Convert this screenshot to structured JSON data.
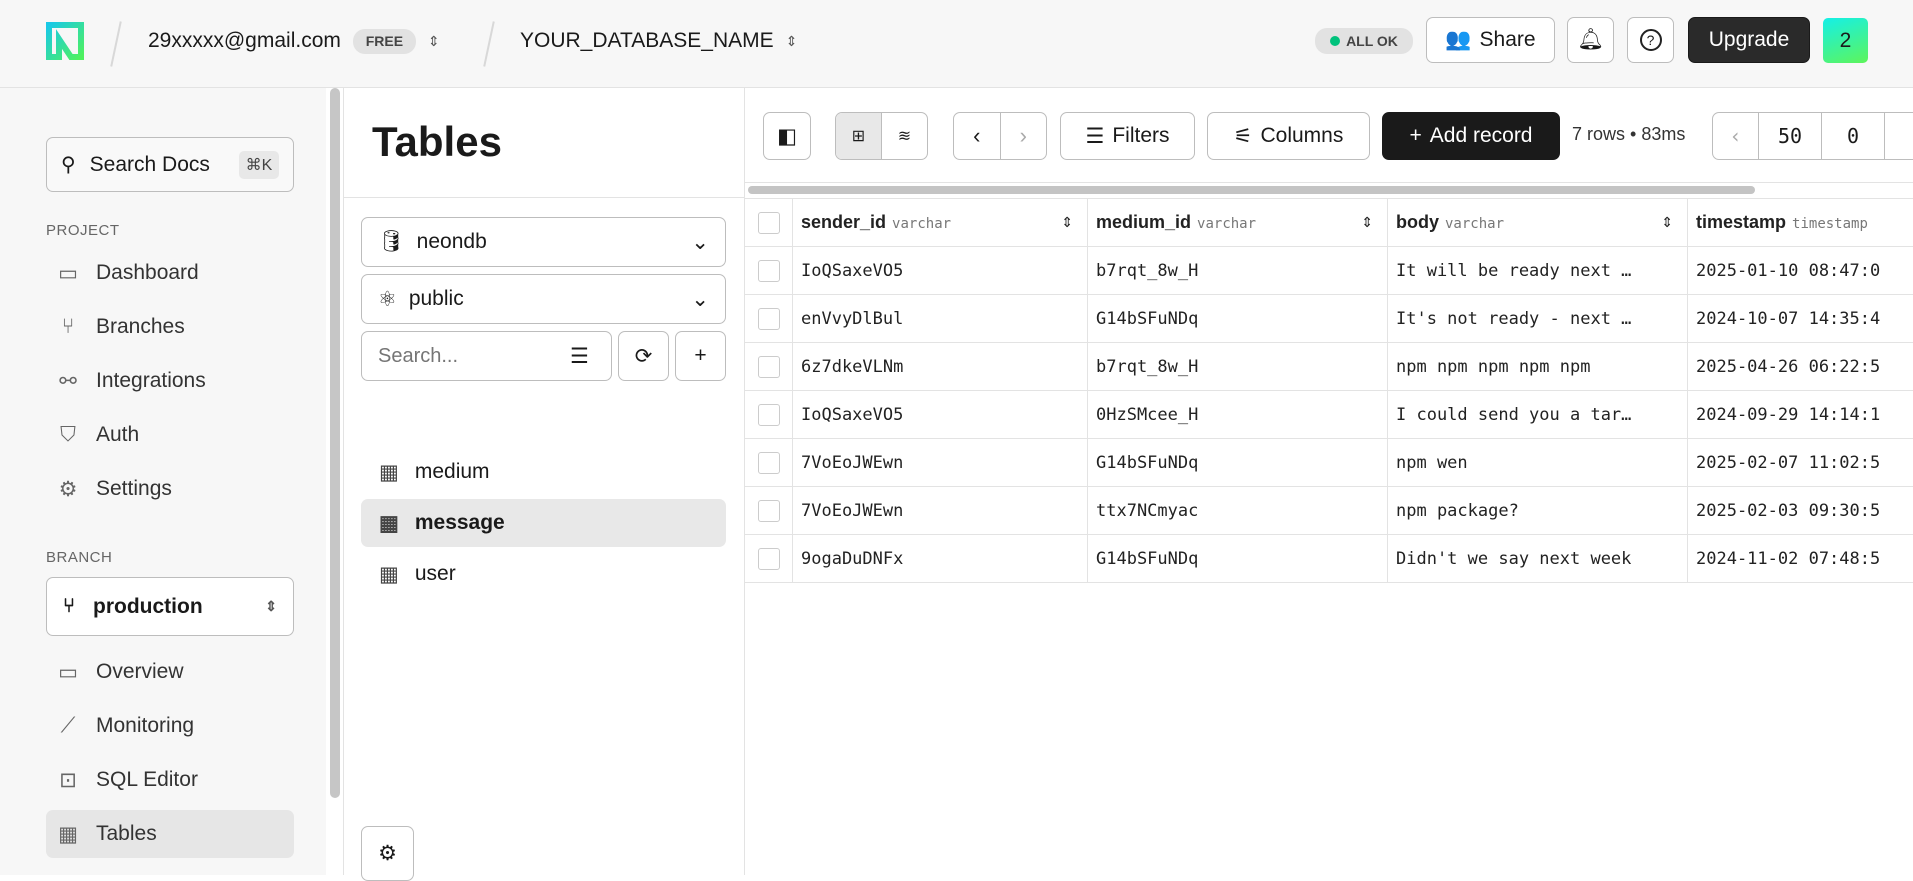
{
  "header": {
    "account": "29xxxxx@gmail.com",
    "plan": "FREE",
    "database": "YOUR_DATABASE_NAME",
    "status": "ALL OK",
    "share": "Share",
    "upgrade": "Upgrade",
    "avatar": "2",
    "status_color": "#00c27c"
  },
  "sidebar": {
    "search": "Search Docs",
    "shortcut": "⌘K",
    "project_label": "PROJECT",
    "project_items": [
      {
        "label": "Dashboard",
        "icon": "dashboard-icon"
      },
      {
        "label": "Branches",
        "icon": "branch-icon"
      },
      {
        "label": "Integrations",
        "icon": "integrations-icon"
      },
      {
        "label": "Auth",
        "icon": "shield-icon"
      },
      {
        "label": "Settings",
        "icon": "gear-icon"
      }
    ],
    "branch_label": "BRANCH",
    "branch": "production",
    "branch_items": [
      {
        "label": "Overview",
        "icon": "overview-icon"
      },
      {
        "label": "Monitoring",
        "icon": "chart-icon"
      },
      {
        "label": "SQL Editor",
        "icon": "terminal-icon"
      },
      {
        "label": "Tables",
        "icon": "table-icon",
        "selected": true
      }
    ]
  },
  "tables_panel": {
    "title": "Tables",
    "database": "neondb",
    "schema": "public",
    "search_placeholder": "Search...",
    "tables": [
      {
        "name": "medium"
      },
      {
        "name": "message",
        "selected": true
      },
      {
        "name": "user"
      }
    ]
  },
  "toolbar": {
    "filters": "Filters",
    "columns": "Columns",
    "add_record": "Add record",
    "summary": "7 rows • 83ms",
    "limit": "50",
    "offset": "0"
  },
  "grid": {
    "columns": [
      {
        "name": "sender_id",
        "type": "varchar"
      },
      {
        "name": "medium_id",
        "type": "varchar"
      },
      {
        "name": "body",
        "type": "varchar"
      },
      {
        "name": "timestamp",
        "type": "timestamp"
      }
    ],
    "rows": [
      [
        "IoQSaxeVO5",
        "b7rqt_8w_H",
        "It will be ready next …",
        "2025-01-10 08:47:0"
      ],
      [
        "enVvyDlBul",
        "G14bSFuNDq",
        "It's not ready - next …",
        "2024-10-07 14:35:4"
      ],
      [
        "6z7dkeVLNm",
        "b7rqt_8w_H",
        "npm npm npm npm npm",
        "2025-04-26 06:22:5"
      ],
      [
        "IoQSaxeVO5",
        "0HzSMcee_H",
        "I could send you a tar…",
        "2024-09-29 14:14:1"
      ],
      [
        "7VoEoJWEwn",
        "G14bSFuNDq",
        "npm wen",
        "2025-02-07 11:02:5"
      ],
      [
        "7VoEoJWEwn",
        "ttx7NCmyac",
        "npm package?",
        "2025-02-03 09:30:5"
      ],
      [
        "9ogaDuDNFx",
        "G14bSFuNDq",
        "Didn't we say next week",
        "2024-11-02 07:48:5"
      ]
    ]
  }
}
